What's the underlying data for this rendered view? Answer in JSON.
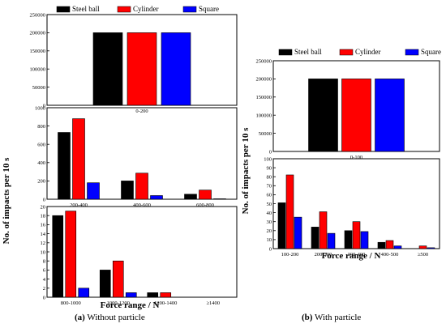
{
  "chart_data": [
    {
      "panel": "a",
      "part": "top",
      "type": "bar",
      "categories": [
        "0-200"
      ],
      "series": [
        {
          "name": "Steel ball",
          "values": [
            200000
          ]
        },
        {
          "name": "Cylinder",
          "values": [
            200000
          ]
        },
        {
          "name": "Square",
          "values": [
            200000
          ]
        }
      ],
      "ylim": [
        0,
        250000
      ],
      "yticks": [
        "0",
        "50000",
        "100000",
        "150000",
        "200000",
        "250000"
      ],
      "legend": "top"
    },
    {
      "panel": "a",
      "part": "middle",
      "type": "bar",
      "categories": [
        "200-400",
        "400-600",
        "600-800"
      ],
      "series": [
        {
          "name": "Steel ball",
          "values": [
            730,
            200,
            55
          ]
        },
        {
          "name": "Cylinder",
          "values": [
            880,
            285,
            100
          ]
        },
        {
          "name": "Square",
          "values": [
            180,
            40,
            5
          ]
        }
      ],
      "ylim": [
        0,
        1000
      ],
      "yticks": [
        "0",
        "200",
        "400",
        "600",
        "800",
        "1000"
      ]
    },
    {
      "panel": "a",
      "part": "bottom",
      "type": "bar",
      "categories": [
        "800-1000",
        "1000-1200",
        "1200-1400",
        "≥1400"
      ],
      "series": [
        {
          "name": "Steel ball",
          "values": [
            18,
            6,
            1,
            0
          ]
        },
        {
          "name": "Cylinder",
          "values": [
            19,
            8,
            1,
            0
          ]
        },
        {
          "name": "Square",
          "values": [
            2,
            1,
            0,
            0
          ]
        }
      ],
      "ylim": [
        0,
        20
      ],
      "yticks": [
        "0",
        "2",
        "4",
        "6",
        "8",
        "10",
        "12",
        "14",
        "16",
        "18",
        "20"
      ]
    },
    {
      "panel": "b",
      "part": "top",
      "type": "bar",
      "categories": [
        "0-100"
      ],
      "series": [
        {
          "name": "Steel ball",
          "values": [
            200000
          ]
        },
        {
          "name": "Cylinder",
          "values": [
            200000
          ]
        },
        {
          "name": "Square",
          "values": [
            200000
          ]
        }
      ],
      "ylim": [
        0,
        250000
      ],
      "yticks": [
        "0",
        "50000",
        "100000",
        "150000",
        "200000",
        "250000"
      ],
      "legend": "top"
    },
    {
      "panel": "b",
      "part": "bottom",
      "type": "bar",
      "categories": [
        "100-200",
        "200-300",
        "300-400",
        "400-500",
        "≥500"
      ],
      "series": [
        {
          "name": "Steel ball",
          "values": [
            51,
            24,
            20,
            7,
            0
          ]
        },
        {
          "name": "Cylinder",
          "values": [
            82,
            41,
            30,
            9,
            3
          ]
        },
        {
          "name": "Square",
          "values": [
            35,
            17,
            19,
            3,
            1
          ]
        }
      ],
      "ylim": [
        0,
        100
      ],
      "yticks": [
        "0",
        "10",
        "20",
        "30",
        "40",
        "50",
        "60",
        "70",
        "80",
        "90",
        "100"
      ]
    }
  ],
  "legend": {
    "items": [
      "Steel ball",
      "Cylinder",
      "Square"
    ]
  },
  "colors": {
    "Steel ball": "#000000",
    "Cylinder": "#ff0000",
    "Square": "#0000ff"
  },
  "ylabel": "No. of impacts per 10 s",
  "xlabel": "Force range / N",
  "captions": {
    "a": {
      "tag": "(a)",
      "text": " Without particle"
    },
    "b": {
      "tag": "(b)",
      "text": " With particle"
    }
  }
}
